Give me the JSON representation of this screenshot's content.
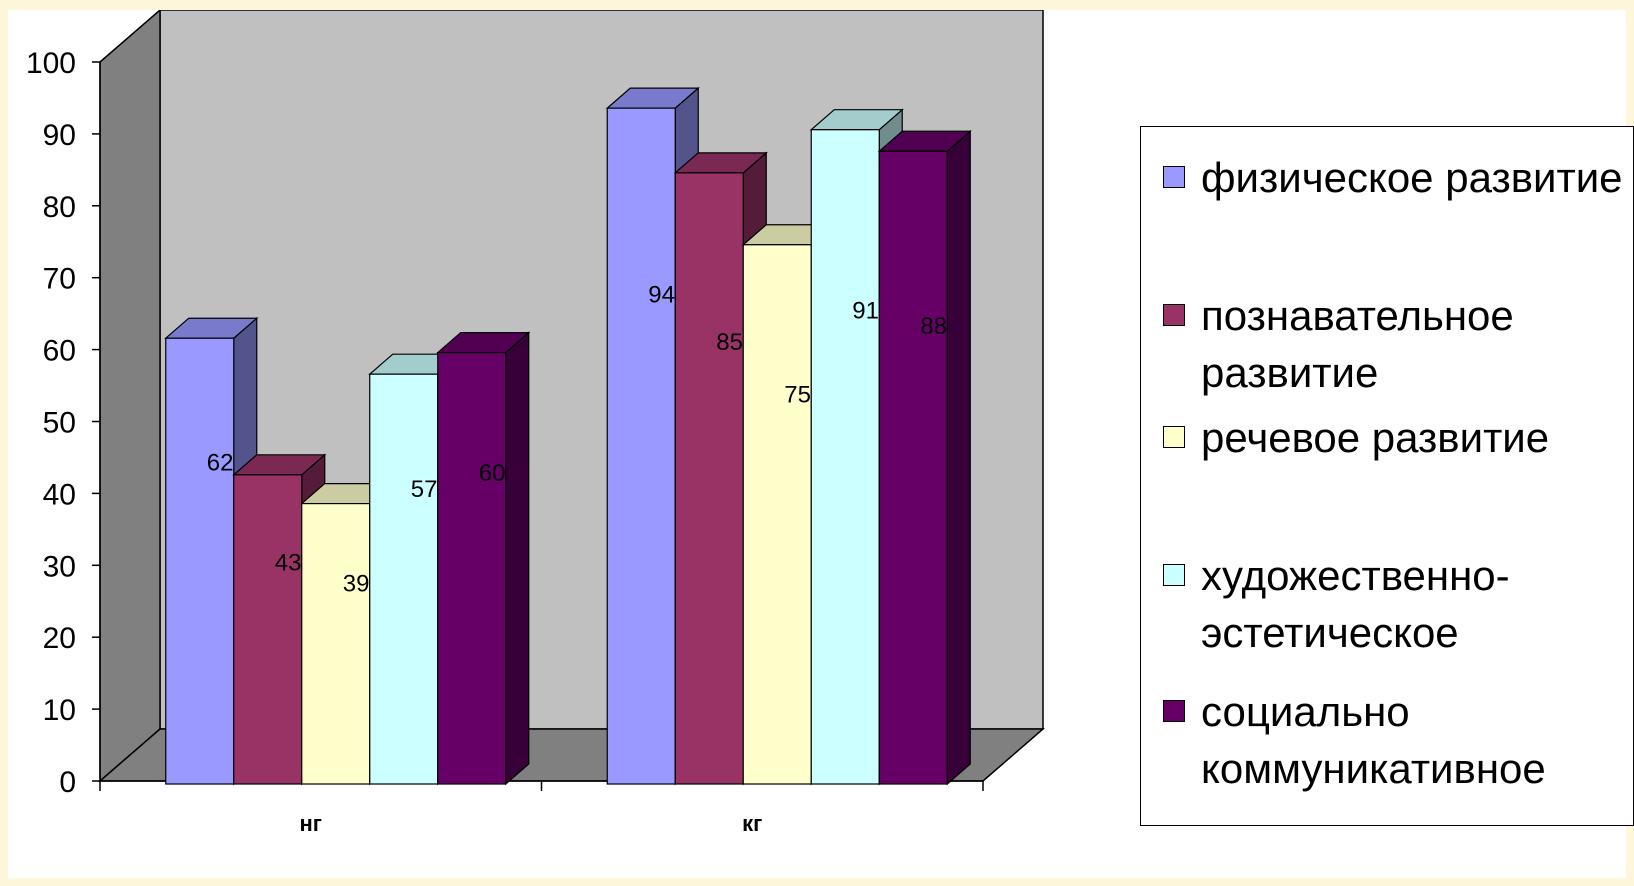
{
  "chart_data": {
    "type": "bar",
    "categories": [
      "нг",
      "кг"
    ],
    "series": [
      {
        "name": "физическое развитие",
        "values": [
          62,
          94
        ],
        "color": "#9999ff",
        "data_labels": [
          "62",
          "94"
        ]
      },
      {
        "name": "познавательное развитие",
        "values": [
          43,
          85
        ],
        "color": "#993366",
        "data_labels": [
          "43",
          "85"
        ]
      },
      {
        "name": "речевое развитие",
        "values": [
          39,
          75
        ],
        "color": "#ffffcc",
        "data_labels": [
          "39",
          "75"
        ]
      },
      {
        "name": "художественно-эстетическое",
        "values": [
          57,
          91
        ],
        "color": "#ccffff",
        "data_labels": [
          "57",
          "91"
        ]
      },
      {
        "name": "социально коммуникативное",
        "values": [
          60,
          88
        ],
        "color": "#660066",
        "data_labels": [
          "60",
          "88"
        ]
      }
    ],
    "yticks": [
      "0",
      "10",
      "20",
      "30",
      "40",
      "50",
      "60",
      "70",
      "80",
      "90",
      "100"
    ],
    "ylim": [
      0,
      100
    ],
    "style": "3d-clustered-column",
    "legend_position": "right",
    "wall_color": "#c0c0c0",
    "title": "",
    "xlabel": "",
    "ylabel": ""
  }
}
